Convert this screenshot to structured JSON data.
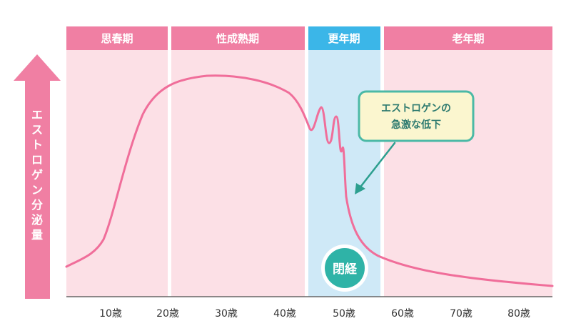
{
  "y_axis": {
    "label": "エストロゲン分泌量"
  },
  "phases": [
    {
      "label": "思春期",
      "bg_color": "#fce0e6",
      "header_color": "#f07fa3"
    },
    {
      "label": "性成熟期",
      "bg_color": "#fce0e6",
      "header_color": "#f07fa3"
    },
    {
      "label": "更年期",
      "bg_color": "#cfe9f7",
      "header_color": "#3bb6e8"
    },
    {
      "label": "老年期",
      "bg_color": "#fce0e6",
      "header_color": "#f07fa3"
    }
  ],
  "x_ticks": [
    "10歳",
    "20歳",
    "30歳",
    "40歳",
    "50歳",
    "60歳",
    "70歳",
    "80歳"
  ],
  "callout": {
    "line1": "エストロゲンの",
    "line2": "急激な低下"
  },
  "badge": {
    "label": "閉経"
  },
  "colors": {
    "curve": "#f06e9a",
    "arrow": "#f07fa3",
    "callout_fill": "#fbf6cf",
    "callout_border": "#4bb9a6",
    "callout_text": "#2d7a6f",
    "badge_fill": "#2fb3a7"
  }
}
